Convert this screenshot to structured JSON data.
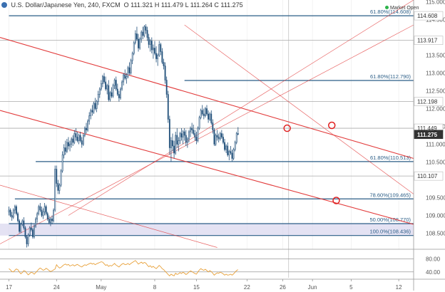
{
  "header": {
    "symbol": "U.S. Dollar/Japanese Yen",
    "interval": "240",
    "source": "FXCM",
    "ohlc": "O 111.321 H 111.479 L 111.264 C 111.275"
  },
  "market_status": "Market Open",
  "colors": {
    "trendline": "#e03030",
    "level": "#2a5d86",
    "candle": "#1f4e79",
    "rsi": "#e8a13a",
    "zone": "#d9d6ee",
    "price_label": "#555555"
  },
  "chart_data": {
    "type": "candlestick",
    "title": "U.S. Dollar/Japanese Yen, 240, FXCM",
    "ylim": [
      108.05,
      115.05
    ],
    "y_ticks": [
      115.0,
      114.5,
      113.5,
      113.0,
      112.5,
      112.0,
      111.5,
      111.0,
      110.5,
      109.5,
      109.0,
      108.5
    ],
    "x_tick_labels": [
      {
        "label": "17",
        "idx": 0
      },
      {
        "label": "24",
        "idx": 32
      },
      {
        "label": "May",
        "idx": 62
      },
      {
        "label": "8",
        "idx": 98
      },
      {
        "label": "15",
        "idx": 126
      },
      {
        "label": "22",
        "idx": 160
      },
      {
        "label": "26",
        "idx": 184
      },
      {
        "label": "Jun",
        "idx": 204
      },
      {
        "label": "5",
        "idx": 230
      },
      {
        "label": "12",
        "idx": 262
      }
    ],
    "x_domain": [
      -6,
      272
    ],
    "price_labels": [
      {
        "label": "114.608",
        "value": 114.608
      },
      {
        "label": "113.917",
        "value": 113.917
      },
      {
        "label": "112.198",
        "value": 112.198
      },
      {
        "label": "111.449",
        "value": 111.449
      },
      {
        "label": "111.275",
        "value": 111.275,
        "current": true
      },
      {
        "label": "110.107",
        "value": 110.107
      }
    ],
    "fib_levels": [
      {
        "label": "61.80%(114.608)",
        "value": 114.608,
        "start": 0
      },
      {
        "label": "61.80%(112.790)",
        "value": 112.79,
        "start": 118
      },
      {
        "label": "61.80%(110.513)",
        "value": 110.513,
        "start": 18
      },
      {
        "label": "78.60%(109.465)",
        "value": 109.465,
        "start": 4
      },
      {
        "label": "50.00%(108.770)",
        "value": 108.77,
        "start": 0
      },
      {
        "label": "100.0%(108.436)",
        "value": 108.436,
        "start": 0
      }
    ],
    "grey_levels": [
      113.917,
      112.198,
      111.449,
      110.107
    ],
    "zone": [
      108.436,
      108.77
    ],
    "trendlines": [
      {
        "from": [
          -6,
          114.0
        ],
        "to": [
          272,
          110.6
        ]
      },
      {
        "from": [
          -6,
          111.95
        ],
        "to": [
          272,
          108.75
        ]
      },
      {
        "from": [
          -6,
          108.2
        ],
        "to": [
          272,
          114.35
        ]
      },
      {
        "from": [
          40,
          109.0
        ],
        "to": [
          272,
          115.05
        ]
      },
      {
        "from": [
          118,
          114.35
        ],
        "to": [
          272,
          109.6
        ]
      },
      {
        "from": [
          -6,
          109.85
        ],
        "to": [
          140,
          108.1
        ]
      }
    ],
    "markers": [
      {
        "idx": 187,
        "value": 111.449
      },
      {
        "idx": 217,
        "value": 111.53
      },
      {
        "idx": 220,
        "value": 109.42
      }
    ],
    "cursor_idx": 188,
    "candles": [
      [
        109.1,
        109.25,
        109.0,
        109.15
      ],
      [
        109.15,
        109.2,
        108.95,
        109.0
      ],
      [
        109.0,
        109.1,
        108.85,
        108.95
      ],
      [
        108.95,
        109.2,
        108.9,
        109.15
      ],
      [
        109.15,
        109.3,
        109.05,
        109.25
      ],
      [
        109.25,
        109.3,
        109.0,
        109.05
      ],
      [
        109.05,
        109.1,
        108.8,
        108.85
      ],
      [
        108.85,
        108.9,
        108.5,
        108.55
      ],
      [
        108.55,
        108.8,
        108.5,
        108.75
      ],
      [
        108.75,
        108.9,
        108.7,
        108.85
      ],
      [
        108.85,
        108.95,
        108.6,
        108.65
      ],
      [
        108.65,
        108.7,
        108.35,
        108.4
      ],
      [
        108.4,
        108.45,
        108.1,
        108.2
      ],
      [
        108.2,
        108.5,
        108.13,
        108.45
      ],
      [
        108.45,
        108.7,
        108.4,
        108.65
      ],
      [
        108.65,
        108.8,
        108.55,
        108.6
      ],
      [
        108.6,
        108.65,
        108.35,
        108.4
      ],
      [
        108.4,
        108.75,
        108.35,
        108.7
      ],
      [
        108.7,
        108.95,
        108.65,
        108.9
      ],
      [
        108.9,
        109.1,
        108.8,
        109.05
      ],
      [
        109.05,
        109.3,
        109.0,
        109.25
      ],
      [
        109.25,
        109.35,
        109.1,
        109.15
      ],
      [
        109.15,
        109.25,
        108.95,
        109.0
      ],
      [
        109.0,
        109.2,
        108.9,
        109.1
      ],
      [
        109.1,
        109.35,
        109.0,
        109.25
      ],
      [
        109.25,
        109.3,
        109.0,
        109.05
      ],
      [
        109.05,
        109.1,
        108.85,
        108.9
      ],
      [
        108.9,
        109.0,
        108.75,
        108.8
      ],
      [
        108.8,
        108.95,
        108.7,
        108.9
      ],
      [
        108.9,
        109.0,
        108.75,
        108.85
      ],
      [
        108.85,
        109.2,
        108.8,
        109.15
      ],
      [
        109.15,
        110.4,
        109.1,
        110.3
      ],
      [
        110.3,
        110.4,
        109.8,
        109.9
      ],
      [
        109.9,
        110.0,
        109.6,
        109.7
      ],
      [
        109.7,
        109.9,
        109.6,
        109.85
      ],
      [
        109.85,
        110.3,
        109.8,
        110.25
      ],
      [
        110.25,
        110.8,
        110.2,
        110.7
      ],
      [
        110.7,
        111.0,
        110.6,
        110.9
      ],
      [
        110.9,
        111.1,
        110.7,
        110.8
      ],
      [
        110.8,
        111.15,
        110.75,
        111.05
      ],
      [
        111.05,
        111.2,
        110.85,
        110.95
      ],
      [
        110.95,
        111.1,
        110.8,
        111.0
      ],
      [
        111.0,
        111.2,
        110.9,
        111.15
      ],
      [
        111.15,
        111.25,
        110.95,
        111.05
      ],
      [
        111.05,
        111.4,
        111.0,
        111.3
      ],
      [
        111.3,
        111.45,
        111.1,
        111.2
      ],
      [
        111.2,
        111.35,
        111.05,
        111.1
      ],
      [
        111.1,
        111.3,
        111.0,
        111.25
      ],
      [
        111.25,
        111.35,
        111.05,
        111.1
      ],
      [
        111.1,
        111.2,
        110.9,
        111.0
      ],
      [
        111.0,
        111.3,
        110.95,
        111.25
      ],
      [
        111.25,
        111.5,
        111.2,
        111.45
      ],
      [
        111.45,
        111.6,
        111.3,
        111.4
      ],
      [
        111.4,
        111.7,
        111.35,
        111.65
      ],
      [
        111.65,
        111.9,
        111.55,
        111.8
      ],
      [
        111.8,
        112.0,
        111.7,
        111.95
      ],
      [
        111.95,
        112.1,
        111.8,
        111.9
      ],
      [
        111.9,
        112.2,
        111.85,
        112.15
      ],
      [
        112.15,
        112.3,
        111.95,
        112.0
      ],
      [
        112.0,
        112.25,
        111.9,
        112.2
      ],
      [
        112.2,
        112.5,
        112.1,
        112.4
      ],
      [
        112.4,
        112.6,
        112.3,
        112.55
      ],
      [
        112.55,
        112.8,
        112.5,
        112.7
      ],
      [
        112.7,
        112.95,
        112.6,
        112.9
      ],
      [
        112.9,
        113.0,
        112.7,
        112.75
      ],
      [
        112.75,
        112.9,
        112.5,
        112.55
      ],
      [
        112.55,
        112.7,
        112.4,
        112.65
      ],
      [
        112.65,
        112.8,
        112.2,
        112.25
      ],
      [
        112.25,
        112.5,
        112.2,
        112.45
      ],
      [
        112.45,
        112.6,
        112.3,
        112.35
      ],
      [
        112.35,
        112.7,
        112.3,
        112.65
      ],
      [
        112.65,
        112.85,
        112.55,
        112.8
      ],
      [
        112.8,
        112.9,
        112.5,
        112.55
      ],
      [
        112.55,
        112.7,
        112.35,
        112.4
      ],
      [
        112.4,
        112.5,
        112.2,
        112.3
      ],
      [
        112.3,
        112.6,
        112.25,
        112.55
      ],
      [
        112.55,
        112.8,
        112.5,
        112.75
      ],
      [
        112.75,
        113.0,
        112.65,
        112.95
      ],
      [
        112.95,
        113.1,
        112.8,
        112.85
      ],
      [
        112.85,
        113.0,
        112.7,
        112.9
      ],
      [
        112.9,
        113.2,
        112.85,
        113.15
      ],
      [
        113.15,
        113.3,
        112.95,
        113.0
      ],
      [
        113.0,
        113.4,
        112.95,
        113.35
      ],
      [
        113.35,
        113.6,
        113.25,
        113.55
      ],
      [
        113.55,
        113.9,
        113.5,
        113.85
      ],
      [
        113.85,
        114.2,
        113.8,
        114.1
      ],
      [
        114.1,
        114.3,
        113.9,
        113.95
      ],
      [
        113.95,
        114.1,
        113.6,
        113.7
      ],
      [
        113.7,
        114.0,
        113.65,
        113.95
      ],
      [
        113.95,
        114.2,
        113.85,
        114.15
      ],
      [
        114.15,
        114.3,
        113.95,
        114.05
      ],
      [
        114.05,
        114.35,
        114.0,
        114.3
      ],
      [
        114.3,
        114.37,
        114.1,
        114.2
      ],
      [
        114.2,
        114.3,
        113.9,
        114.0
      ],
      [
        114.0,
        114.1,
        113.7,
        113.8
      ],
      [
        113.8,
        113.95,
        113.6,
        113.9
      ],
      [
        113.9,
        114.0,
        113.55,
        113.65
      ],
      [
        113.65,
        113.8,
        113.4,
        113.7
      ],
      [
        113.7,
        113.9,
        113.5,
        113.55
      ],
      [
        113.55,
        113.75,
        113.3,
        113.4
      ],
      [
        113.4,
        113.55,
        113.2,
        113.5
      ],
      [
        113.5,
        113.9,
        113.45,
        113.8
      ],
      [
        113.8,
        113.85,
        113.5,
        113.6
      ],
      [
        113.6,
        113.7,
        113.25,
        113.3
      ],
      [
        113.3,
        113.4,
        113.1,
        113.2
      ],
      [
        113.2,
        113.3,
        112.7,
        112.8
      ],
      [
        112.8,
        112.9,
        112.3,
        112.4
      ],
      [
        112.4,
        112.5,
        111.6,
        111.7
      ],
      [
        111.7,
        111.8,
        110.7,
        110.9
      ],
      [
        110.9,
        111.2,
        110.5,
        111.1
      ],
      [
        111.1,
        111.3,
        110.8,
        110.95
      ],
      [
        110.95,
        111.1,
        110.6,
        110.75
      ],
      [
        110.75,
        111.35,
        110.7,
        111.25
      ],
      [
        111.25,
        111.45,
        110.9,
        111.0
      ],
      [
        111.0,
        111.2,
        110.8,
        111.1
      ],
      [
        111.1,
        111.35,
        111.0,
        111.3
      ],
      [
        111.3,
        111.45,
        111.1,
        111.2
      ],
      [
        111.2,
        111.4,
        111.0,
        111.35
      ],
      [
        111.35,
        111.45,
        111.1,
        111.25
      ],
      [
        111.25,
        111.4,
        110.95,
        111.05
      ],
      [
        111.05,
        111.2,
        110.9,
        111.15
      ],
      [
        111.15,
        111.4,
        111.05,
        111.35
      ],
      [
        111.35,
        111.5,
        111.2,
        111.45
      ],
      [
        111.45,
        111.6,
        111.3,
        111.4
      ],
      [
        111.4,
        111.55,
        111.25,
        111.3
      ],
      [
        111.3,
        111.4,
        111.1,
        111.2
      ],
      [
        111.2,
        111.35,
        111.0,
        111.1
      ],
      [
        111.1,
        111.5,
        111.05,
        111.45
      ],
      [
        111.45,
        111.8,
        111.4,
        111.75
      ],
      [
        111.75,
        112.0,
        111.7,
        111.95
      ],
      [
        111.95,
        112.1,
        111.8,
        111.85
      ],
      [
        111.85,
        112.0,
        111.7,
        111.8
      ],
      [
        111.8,
        112.05,
        111.75,
        112.0
      ],
      [
        112.0,
        112.1,
        111.8,
        111.85
      ],
      [
        111.85,
        111.95,
        111.6,
        111.7
      ],
      [
        111.7,
        111.9,
        111.65,
        111.85
      ],
      [
        111.85,
        111.95,
        111.55,
        111.6
      ],
      [
        111.6,
        111.7,
        111.3,
        111.4
      ],
      [
        111.4,
        111.45,
        110.95,
        111.0
      ],
      [
        111.0,
        111.3,
        110.95,
        111.25
      ],
      [
        111.25,
        111.4,
        111.1,
        111.2
      ],
      [
        111.2,
        111.3,
        111.05,
        111.15
      ],
      [
        111.15,
        111.35,
        111.1,
        111.3
      ],
      [
        111.3,
        111.4,
        111.15,
        111.2
      ],
      [
        111.2,
        111.3,
        111.0,
        111.05
      ],
      [
        111.05,
        111.15,
        110.8,
        110.85
      ],
      [
        110.85,
        111.0,
        110.75,
        110.95
      ],
      [
        110.95,
        111.05,
        110.65,
        110.7
      ],
      [
        110.7,
        110.85,
        110.55,
        110.8
      ],
      [
        110.8,
        110.95,
        110.7,
        110.75
      ],
      [
        110.75,
        110.85,
        110.52,
        110.6
      ],
      [
        110.6,
        110.9,
        110.55,
        110.85
      ],
      [
        110.85,
        111.1,
        110.8,
        111.05
      ],
      [
        111.05,
        111.35,
        111.0,
        111.3
      ],
      [
        111.3,
        111.48,
        111.25,
        111.28
      ]
    ],
    "rsi": {
      "label_values": [
        80.0,
        40.0
      ],
      "ylim": [
        22,
        92
      ],
      "values": [
        50,
        46,
        41,
        40,
        45,
        49,
        47,
        40,
        34,
        38,
        44,
        42,
        36,
        31,
        35,
        39,
        37,
        33,
        38,
        43,
        48,
        52,
        49,
        45,
        47,
        51,
        48,
        44,
        41,
        43,
        46,
        49,
        62,
        56,
        52,
        54,
        58,
        62,
        64,
        61,
        63,
        58,
        60,
        62,
        58,
        61,
        63,
        60,
        57,
        55,
        59,
        62,
        60,
        63,
        65,
        67,
        64,
        66,
        62,
        65,
        67,
        69,
        71,
        70,
        65,
        60,
        62,
        57,
        60,
        58,
        62,
        66,
        61,
        58,
        55,
        60,
        64,
        66,
        62,
        63,
        66,
        62,
        66,
        69,
        72,
        75,
        70,
        64,
        67,
        70,
        66,
        69,
        67,
        61,
        56,
        59,
        54,
        57,
        53,
        50,
        55,
        60,
        56,
        50,
        47,
        42,
        37,
        32,
        28,
        33,
        30,
        28,
        36,
        32,
        34,
        38,
        35,
        39,
        36,
        32,
        35,
        40,
        43,
        41,
        38,
        35,
        33,
        40,
        46,
        50,
        47,
        45,
        48,
        44,
        40,
        44,
        41,
        36,
        30,
        34,
        37,
        36,
        39,
        37,
        34,
        30,
        33,
        30,
        31,
        33,
        30,
        34,
        39,
        44,
        47
      ]
    }
  }
}
